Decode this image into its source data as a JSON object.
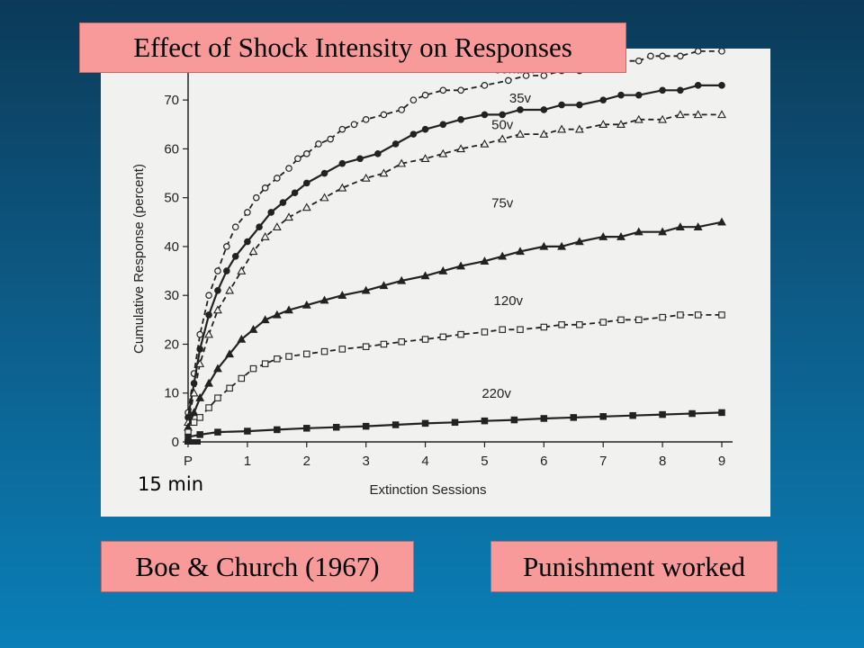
{
  "slide": {
    "title": "Effect of Shock Intensity on Responses",
    "reference": "Boe & Church (1967)",
    "conclusion": "Punishment worked",
    "annotation": "15 min",
    "background_color": "#0d5a85",
    "box_color": "#f99a9a"
  },
  "chart_data": {
    "type": "line",
    "xlabel": "Extinction Sessions",
    "ylabel": "Cumulative Response (percent)",
    "x_ticks": [
      "P",
      "1",
      "2",
      "3",
      "4",
      "5",
      "6",
      "7",
      "8",
      "9"
    ],
    "y_ticks": [
      0,
      10,
      20,
      30,
      40,
      50,
      60,
      70
    ],
    "ylim": [
      0,
      75
    ],
    "xlim": [
      0,
      9
    ],
    "grid": false,
    "series": [
      {
        "name": "control",
        "marker": "circle-open",
        "dash": "dashed",
        "points": [
          [
            0,
            6
          ],
          [
            0.1,
            14
          ],
          [
            0.2,
            22
          ],
          [
            0.35,
            30
          ],
          [
            0.5,
            35
          ],
          [
            0.65,
            40
          ],
          [
            0.8,
            44
          ],
          [
            1,
            47
          ],
          [
            1.15,
            50
          ],
          [
            1.3,
            52
          ],
          [
            1.5,
            54
          ],
          [
            1.7,
            56
          ],
          [
            1.85,
            58
          ],
          [
            2,
            59
          ],
          [
            2.2,
            61
          ],
          [
            2.4,
            62
          ],
          [
            2.6,
            64
          ],
          [
            2.8,
            65
          ],
          [
            3,
            66
          ],
          [
            3.3,
            67
          ],
          [
            3.6,
            68
          ],
          [
            3.8,
            70
          ],
          [
            4,
            71
          ],
          [
            4.3,
            72
          ],
          [
            4.6,
            72
          ],
          [
            5,
            73
          ],
          [
            5.4,
            74
          ],
          [
            5.7,
            75
          ],
          [
            6,
            75
          ],
          [
            6.3,
            76
          ],
          [
            6.6,
            76
          ],
          [
            6.8,
            77
          ],
          [
            7,
            77
          ],
          [
            7.3,
            78
          ],
          [
            7.6,
            78
          ],
          [
            7.8,
            79
          ],
          [
            8,
            79
          ],
          [
            8.3,
            79
          ],
          [
            8.6,
            80
          ],
          [
            9,
            80
          ]
        ],
        "y_scale_note": ""
      },
      {
        "name": "35v",
        "marker": "circle-filled",
        "dash": "solid",
        "points": [
          [
            0,
            5
          ],
          [
            0.1,
            12
          ],
          [
            0.2,
            19
          ],
          [
            0.35,
            26
          ],
          [
            0.5,
            31
          ],
          [
            0.65,
            35
          ],
          [
            0.8,
            38
          ],
          [
            1,
            41
          ],
          [
            1.2,
            44
          ],
          [
            1.4,
            47
          ],
          [
            1.6,
            49
          ],
          [
            1.8,
            51
          ],
          [
            2,
            53
          ],
          [
            2.3,
            55
          ],
          [
            2.6,
            57
          ],
          [
            2.9,
            58
          ],
          [
            3.2,
            59
          ],
          [
            3.5,
            61
          ],
          [
            3.8,
            63
          ],
          [
            4,
            64
          ],
          [
            4.3,
            65
          ],
          [
            4.6,
            66
          ],
          [
            5,
            67
          ],
          [
            5.3,
            67
          ],
          [
            5.6,
            68
          ],
          [
            6,
            68
          ],
          [
            6.3,
            69
          ],
          [
            6.6,
            69
          ],
          [
            7,
            70
          ],
          [
            7.3,
            71
          ],
          [
            7.6,
            71
          ],
          [
            8,
            72
          ],
          [
            8.3,
            72
          ],
          [
            8.6,
            73
          ],
          [
            9,
            73
          ]
        ]
      },
      {
        "name": "50v",
        "marker": "triangle-open",
        "dash": "dashed",
        "points": [
          [
            0,
            4
          ],
          [
            0.1,
            10
          ],
          [
            0.2,
            16
          ],
          [
            0.35,
            22
          ],
          [
            0.5,
            27
          ],
          [
            0.7,
            31
          ],
          [
            0.9,
            35
          ],
          [
            1.1,
            39
          ],
          [
            1.3,
            42
          ],
          [
            1.5,
            44
          ],
          [
            1.7,
            46
          ],
          [
            2,
            48
          ],
          [
            2.3,
            50
          ],
          [
            2.6,
            52
          ],
          [
            3,
            54
          ],
          [
            3.3,
            55
          ],
          [
            3.6,
            57
          ],
          [
            4,
            58
          ],
          [
            4.3,
            59
          ],
          [
            4.6,
            60
          ],
          [
            5,
            61
          ],
          [
            5.3,
            62
          ],
          [
            5.6,
            63
          ],
          [
            6,
            63
          ],
          [
            6.3,
            64
          ],
          [
            6.6,
            64
          ],
          [
            7,
            65
          ],
          [
            7.3,
            65
          ],
          [
            7.6,
            66
          ],
          [
            8,
            66
          ],
          [
            8.3,
            67
          ],
          [
            8.6,
            67
          ],
          [
            9,
            67
          ]
        ]
      },
      {
        "name": "75v",
        "marker": "triangle-filled",
        "dash": "solid",
        "points": [
          [
            0,
            3
          ],
          [
            0.1,
            6
          ],
          [
            0.2,
            9
          ],
          [
            0.35,
            12
          ],
          [
            0.5,
            15
          ],
          [
            0.7,
            18
          ],
          [
            0.9,
            21
          ],
          [
            1.1,
            23
          ],
          [
            1.3,
            25
          ],
          [
            1.5,
            26
          ],
          [
            1.7,
            27
          ],
          [
            2,
            28
          ],
          [
            2.3,
            29
          ],
          [
            2.6,
            30
          ],
          [
            3,
            31
          ],
          [
            3.3,
            32
          ],
          [
            3.6,
            33
          ],
          [
            4,
            34
          ],
          [
            4.3,
            35
          ],
          [
            4.6,
            36
          ],
          [
            5,
            37
          ],
          [
            5.3,
            38
          ],
          [
            5.6,
            39
          ],
          [
            6,
            40
          ],
          [
            6.3,
            40
          ],
          [
            6.6,
            41
          ],
          [
            7,
            42
          ],
          [
            7.3,
            42
          ],
          [
            7.6,
            43
          ],
          [
            8,
            43
          ],
          [
            8.3,
            44
          ],
          [
            8.6,
            44
          ],
          [
            9,
            45
          ]
        ]
      },
      {
        "name": "120v",
        "marker": "square-open",
        "dash": "dashed",
        "points": [
          [
            0,
            2
          ],
          [
            0.1,
            4
          ],
          [
            0.2,
            5
          ],
          [
            0.35,
            7
          ],
          [
            0.5,
            9
          ],
          [
            0.7,
            11
          ],
          [
            0.9,
            13
          ],
          [
            1.1,
            15
          ],
          [
            1.3,
            16
          ],
          [
            1.5,
            17
          ],
          [
            1.7,
            17.5
          ],
          [
            2,
            18
          ],
          [
            2.3,
            18.5
          ],
          [
            2.6,
            19
          ],
          [
            3,
            19.5
          ],
          [
            3.3,
            20
          ],
          [
            3.6,
            20.5
          ],
          [
            4,
            21
          ],
          [
            4.3,
            21.5
          ],
          [
            4.6,
            22
          ],
          [
            5,
            22.5
          ],
          [
            5.3,
            23
          ],
          [
            5.6,
            23
          ],
          [
            6,
            23.5
          ],
          [
            6.3,
            24
          ],
          [
            6.6,
            24
          ],
          [
            7,
            24.5
          ],
          [
            7.3,
            25
          ],
          [
            7.6,
            25
          ],
          [
            8,
            25.5
          ],
          [
            8.3,
            26
          ],
          [
            8.6,
            26
          ],
          [
            9,
            26
          ]
        ]
      },
      {
        "name": "220v",
        "marker": "square-filled",
        "dash": "solid",
        "points": [
          [
            0,
            1
          ],
          [
            0.2,
            1.5
          ],
          [
            0.5,
            2
          ],
          [
            1,
            2.2
          ],
          [
            1.5,
            2.5
          ],
          [
            2,
            2.8
          ],
          [
            2.5,
            3
          ],
          [
            3,
            3.2
          ],
          [
            3.5,
            3.5
          ],
          [
            4,
            3.8
          ],
          [
            4.5,
            4
          ],
          [
            5,
            4.3
          ],
          [
            5.5,
            4.5
          ],
          [
            6,
            4.8
          ],
          [
            6.5,
            5
          ],
          [
            7,
            5.2
          ],
          [
            7.5,
            5.4
          ],
          [
            8,
            5.6
          ],
          [
            8.5,
            5.8
          ],
          [
            9,
            6
          ]
        ]
      }
    ]
  }
}
